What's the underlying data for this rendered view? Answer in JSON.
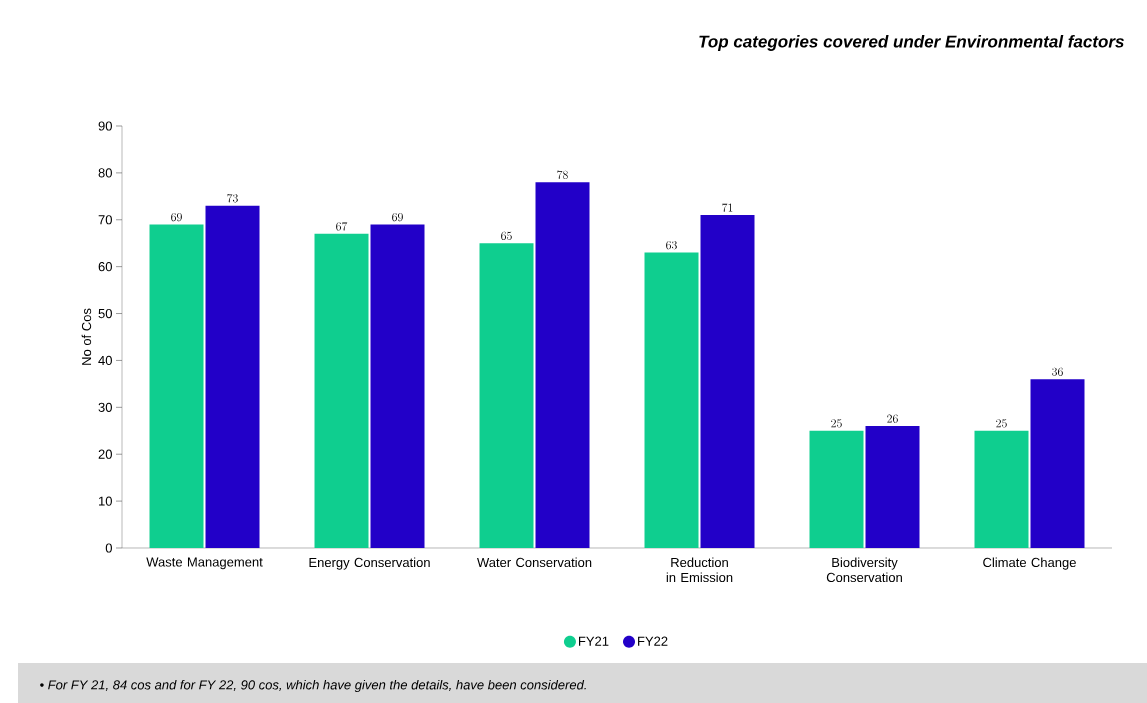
{
  "chart_data": {
    "type": "bar",
    "title": "Top categories covered under Environmental factors",
    "ylabel": "No of Cos",
    "categories": [
      "Waste Management",
      "Energy Conservation",
      "Water Conservation",
      "Reduction in Emission",
      "Biodiversity Conservation",
      "Climate Change"
    ],
    "series": [
      {
        "name": "FY21",
        "color": "#0fce8f",
        "values": [
          69,
          67,
          65,
          63,
          25,
          25
        ]
      },
      {
        "name": "FY22",
        "color": "#2200c8",
        "values": [
          73,
          69,
          78,
          71,
          26,
          36
        ]
      }
    ],
    "ylim": [
      0,
      90
    ],
    "yticks": [
      0,
      10,
      20,
      30,
      40,
      50,
      60,
      70,
      80,
      90
    ],
    "grid": false,
    "legend": "bottom",
    "data_labels": true,
    "annotations": [
      "•   For FY 21, 84 cos and for FY 22, 90 cos, which have given the details, have been considered."
    ]
  }
}
